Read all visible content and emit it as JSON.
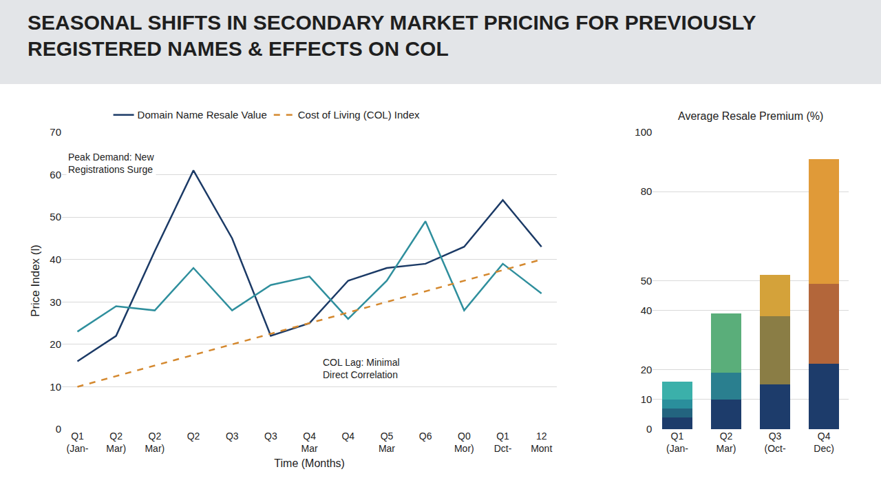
{
  "title": "SEASONAL SHIFTS IN SECONDARY MARKET PRICING FOR PREVIOUSLY REGISTERED NAMES & EFFECTS ON COL",
  "chart_data": [
    {
      "type": "line",
      "x_label": "Time (Months)",
      "y_label": "Price Index (l)",
      "categories": [
        "Q1 (Jan-",
        "Q2 Mar)",
        "Q2 Mar)",
        "Q2",
        "Q3",
        "Q3",
        "Q4 Mar",
        "Q4",
        "Q5 Mar",
        "Q6",
        "Q0 Mor)",
        "Q1 Dct-",
        "12 Mont"
      ],
      "series": [
        {
          "name": "Domain Name Resale Value",
          "color": "#1b3a66",
          "line_style": "solid",
          "values": [
            16,
            22,
            42,
            61,
            45,
            22,
            25,
            35,
            38,
            39,
            43,
            54,
            43
          ]
        },
        {
          "color": "#2f8f9d",
          "line_style": "solid",
          "values": [
            23,
            29,
            28,
            38,
            28,
            34,
            36,
            26,
            35,
            49,
            28,
            39,
            32
          ]
        },
        {
          "name": "Cost of Living (COL) Index",
          "color": "#d4882e",
          "line_style": "dashed",
          "values": [
            10,
            12.5,
            15,
            17.5,
            20,
            22.5,
            25,
            27.5,
            30,
            32.5,
            35,
            37.5,
            40
          ]
        }
      ],
      "ylim": [
        0,
        70
      ],
      "yticks": [
        0,
        10,
        20,
        30,
        40,
        50,
        60,
        70
      ],
      "grid": true,
      "legend": "top",
      "annotations": [
        "Peak Demand: New Registrations Surge",
        "COL Lag: Minimal Direct Correlation"
      ]
    },
    {
      "type": "bar",
      "title": "Average Resale Premium (%)",
      "categories": [
        "Q1 (Jan-",
        "Q2 Mar)",
        "Q3 (Oct-",
        "Q4 Dec)"
      ],
      "stacked": true,
      "series": [
        {
          "colors": [
            "#1d3c6b",
            "#1d3c6b",
            "#1d3c6b",
            "#1d3c6b"
          ],
          "values": [
            4,
            10,
            15,
            22
          ]
        },
        {
          "colors": [
            "#23647f",
            "#2a7f8f",
            "#8a7d45",
            "#b3663a"
          ],
          "values": [
            3,
            9,
            23,
            27
          ]
        },
        {
          "colors": [
            "#2a8f9c",
            "#5aae7a",
            "#d4a23a",
            "#e09a38"
          ],
          "values": [
            3,
            20,
            14,
            42
          ]
        },
        {
          "colors": [
            "#3bb0aa",
            null,
            null,
            null
          ],
          "values": [
            6,
            null,
            null,
            null
          ]
        }
      ],
      "ylim": [
        0,
        100
      ],
      "yticks": [
        0,
        10,
        20,
        40,
        50,
        80,
        100
      ],
      "grid": true
    }
  ]
}
